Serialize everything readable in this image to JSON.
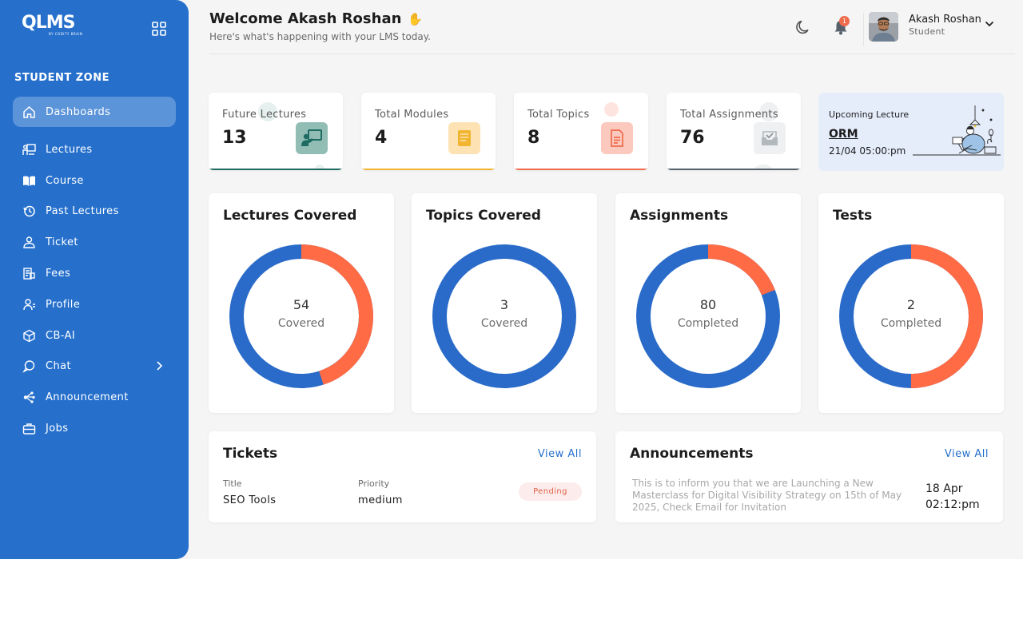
{
  "brand": {
    "logo_text": "QLMS",
    "logo_sub": "BY CODITY BRAIN"
  },
  "sidebar": {
    "section_title": "STUDENT ZONE",
    "items": [
      {
        "label": "Dashboards",
        "icon": "home-icon"
      },
      {
        "label": "Lectures",
        "icon": "lecture-icon"
      },
      {
        "label": "Course",
        "icon": "book-icon"
      },
      {
        "label": "Past Lectures",
        "icon": "history-icon"
      },
      {
        "label": "Ticket",
        "icon": "ticket-icon"
      },
      {
        "label": "Fees",
        "icon": "fees-icon"
      },
      {
        "label": "Profile",
        "icon": "profile-icon"
      },
      {
        "label": "CB-AI",
        "icon": "cube-icon"
      },
      {
        "label": "Chat",
        "icon": "chat-icon"
      },
      {
        "label": "Announcement",
        "icon": "announcement-icon"
      },
      {
        "label": "Jobs",
        "icon": "jobs-icon"
      }
    ]
  },
  "header": {
    "welcome": "Welcome Akash Roshan",
    "wave": "✋",
    "subtitle": "Here's what's happening with your LMS today.",
    "notification_count": "1",
    "user_name": "Akash Roshan",
    "user_role": "Student"
  },
  "stats": [
    {
      "label": "Future Lectures",
      "value": "13",
      "accent": "#1e6b62",
      "icon": "presentation-icon"
    },
    {
      "label": "Total Modules",
      "value": "4",
      "accent": "#f2b531",
      "icon": "module-icon"
    },
    {
      "label": "Total Topics",
      "value": "8",
      "accent": "#ef6b4b",
      "icon": "document-icon"
    },
    {
      "label": "Total Assignments",
      "value": "76",
      "accent": "#55606b",
      "icon": "assignment-icon"
    }
  ],
  "upcoming": {
    "label": "Upcoming Lecture",
    "title": "ORM",
    "time": "21/04 05:00:pm"
  },
  "donuts": [
    {
      "title": "Lectures Covered",
      "value": "54",
      "caption": "Covered",
      "orange_fraction": 0.45
    },
    {
      "title": "Topics Covered",
      "value": "3",
      "caption": "Covered",
      "orange_fraction": 0.0
    },
    {
      "title": "Assignments",
      "value": "80",
      "caption": "Completed",
      "orange_fraction": 0.19
    },
    {
      "title": "Tests",
      "value": "2",
      "caption": "Completed",
      "orange_fraction": 0.5
    }
  ],
  "tickets": {
    "title": "Tickets",
    "view_all": "View All",
    "col_title": "Title",
    "col_priority": "Priority",
    "row": {
      "title": "SEO Tools",
      "priority": "medium",
      "status": "Pending"
    }
  },
  "announcements": {
    "title": "Announcements",
    "view_all": "View All",
    "text": "This is to inform you that we are Launching a New Masterclass for Digital Visibility Strategy on 15th of May 2025, Check Email for Invitation",
    "date": "18 Apr",
    "time": "02:12:pm"
  },
  "colors": {
    "primary": "#2670cc",
    "orange": "#ff6b45",
    "blue_ring": "#2a6bc9"
  }
}
